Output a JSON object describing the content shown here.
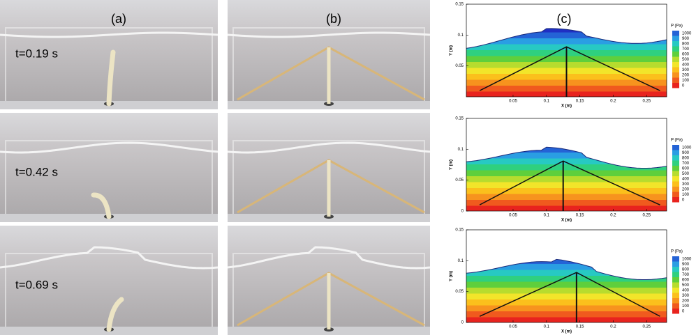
{
  "column_labels": [
    "(a)",
    "(b)",
    "(c)"
  ],
  "time_labels": [
    "t=0.19 s",
    "t=0.42 s",
    "t=0.69 s"
  ],
  "plots": [
    {
      "y_label": "Y (m)",
      "x_label": "X (m)",
      "y_ticks": [
        "0.15",
        "0.1",
        "0.05"
      ],
      "x_ticks": [
        "0.05",
        "0.1",
        "0.15",
        "0.2",
        "0.25"
      ],
      "colorbar_title": "P (Pa)",
      "colorbar_labels": [
        "1000",
        "900",
        "800",
        "700",
        "600",
        "500",
        "400",
        "300",
        "200",
        "100",
        "0"
      ]
    },
    {
      "y_label": "Y (m)",
      "x_label": "X (m)",
      "y_ticks": [
        "0.15",
        "0.1",
        "0.05",
        "0"
      ],
      "x_ticks": [
        "0.05",
        "0.1",
        "0.15",
        "0.2",
        "0.25"
      ],
      "colorbar_title": "P (Pa)",
      "colorbar_labels": [
        "1000",
        "900",
        "800",
        "700",
        "600",
        "500",
        "400",
        "300",
        "200",
        "100",
        "0"
      ]
    },
    {
      "y_label": "Y (m)",
      "x_label": "X (m)",
      "y_ticks": [
        "0.15",
        "0.1",
        "0.05",
        "0"
      ],
      "x_ticks": [
        "0.05",
        "0.1",
        "0.15",
        "0.2",
        "0.25"
      ],
      "colorbar_title": "P (Pa)",
      "colorbar_labels": [
        "1000",
        "900",
        "800",
        "700",
        "600",
        "500",
        "400",
        "300",
        "200",
        "100",
        "0"
      ]
    }
  ]
}
